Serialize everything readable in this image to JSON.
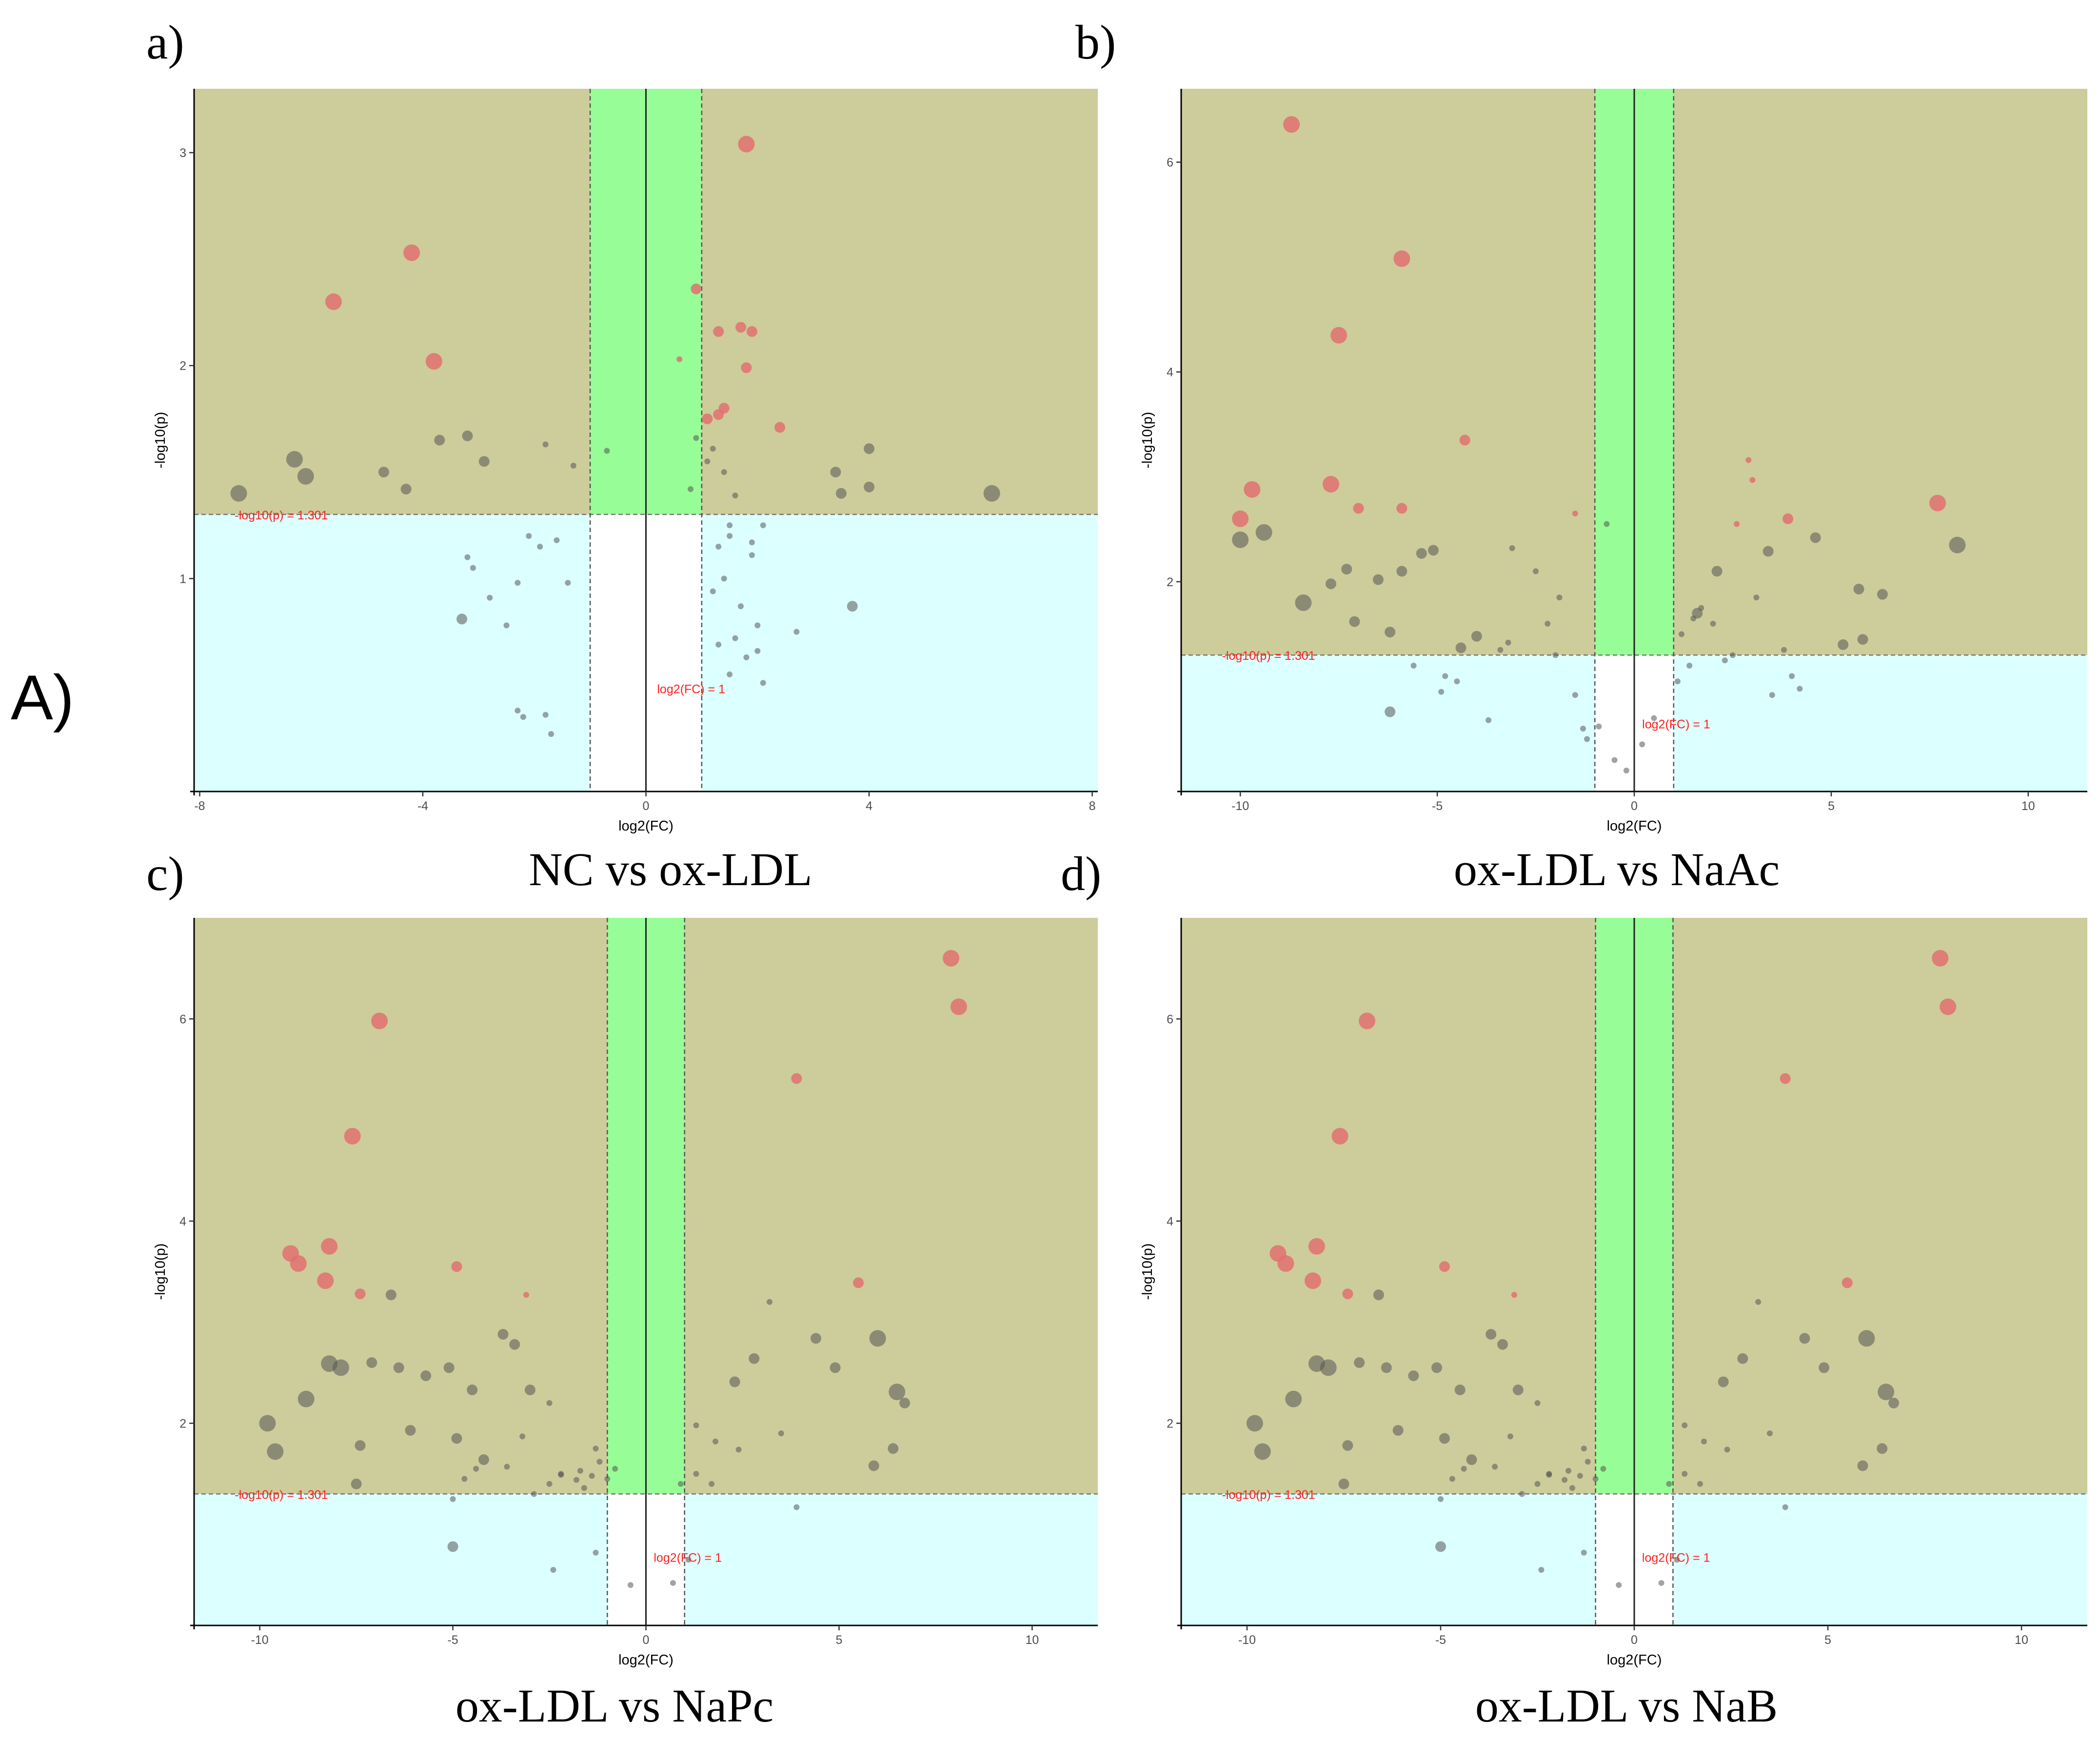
{
  "figure_label": "A)",
  "colors": {
    "significant_region": "#cdcc9b",
    "nonsignificant_region": "#dcffff",
    "foldchange_band": "#97fd96",
    "significant_point": "#e07070",
    "other_point": "#555555",
    "threshold_label": "#ff2020"
  },
  "chart_data": [
    {
      "type": "scatter",
      "panel_letter": "a)",
      "caption": "NC vs ox-LDL",
      "xlabel": "log2(FC)",
      "ylabel": "-log10(p)",
      "xlim": [
        -8.1,
        8.1
      ],
      "ylim": [
        0,
        3.3
      ],
      "xticks": [
        -8,
        -4,
        0,
        4,
        8
      ],
      "yticks": [
        1,
        2,
        3
      ],
      "p_threshold": 1.301,
      "fc_threshold": 1,
      "p_threshold_label": "-log10(p) = 1.301",
      "fc_threshold_label": "log2(FC) = 1",
      "significant": {
        "x": [
          1.8,
          -4.2,
          -5.6,
          -3.8,
          0.9,
          1.3,
          1.7,
          1.9,
          0.6,
          1.8,
          1.4,
          1.1,
          1.3,
          2.4
        ],
        "y": [
          3.04,
          2.53,
          2.3,
          2.02,
          2.36,
          2.16,
          2.18,
          2.16,
          2.03,
          1.99,
          1.8,
          1.75,
          1.77,
          1.71
        ],
        "size": [
          3,
          3,
          3,
          3,
          2,
          2,
          2,
          2,
          1,
          2,
          2,
          2,
          2,
          2
        ]
      },
      "other": {
        "x": [
          -7.3,
          -6.3,
          -6.1,
          -4.7,
          -4.3,
          -3.7,
          -3.2,
          -2.9,
          -1.8,
          -1.3,
          0.9,
          1.1,
          3.4,
          3.5,
          4,
          4,
          6.2,
          -0.7,
          1.2,
          0.8,
          1.4,
          1.6,
          -3.2,
          -3.1,
          -2.8,
          -2.3,
          -2.1,
          -1.9,
          -1.6,
          -1.4,
          -3.3,
          -2.5,
          -2.3,
          -1.8,
          -1.7,
          -2.2,
          3.7,
          2.7,
          2,
          1.5,
          1.3,
          1.5,
          1.9,
          2.1,
          1.7,
          1.3,
          1.5,
          2,
          1.6,
          2.1,
          1.2,
          1.8,
          1.4,
          1.9
        ],
        "y": [
          1.4,
          1.56,
          1.48,
          1.5,
          1.42,
          1.65,
          1.67,
          1.55,
          1.63,
          1.53,
          1.66,
          1.55,
          1.5,
          1.4,
          1.61,
          1.43,
          1.4,
          1.6,
          1.61,
          1.42,
          1.5,
          1.39,
          1.1,
          1.05,
          0.91,
          0.98,
          1.2,
          1.15,
          1.18,
          0.98,
          0.81,
          0.78,
          0.38,
          0.36,
          0.27,
          0.35,
          0.87,
          0.75,
          0.66,
          1.2,
          1.15,
          1.25,
          1.17,
          1.25,
          0.87,
          0.69,
          0.55,
          0.78,
          0.72,
          0.51,
          0.94,
          0.63,
          1,
          1.11
        ],
        "size": [
          3,
          3,
          3,
          2,
          2,
          2,
          2,
          2,
          1,
          1,
          1,
          1,
          2,
          2,
          2,
          2,
          3,
          1,
          1,
          1,
          1,
          1,
          1,
          1,
          1,
          1,
          1,
          1,
          1,
          1,
          2,
          1,
          1,
          1,
          1,
          1,
          2,
          1,
          1,
          1,
          1,
          1,
          1,
          1,
          1,
          1,
          1,
          1,
          1,
          1,
          1,
          1,
          1,
          1
        ]
      }
    },
    {
      "type": "scatter",
      "panel_letter": "b)",
      "caption": "ox-LDL vs NaAc",
      "xlabel": "log2(FC)",
      "ylabel": "-log10(p)",
      "xlim": [
        -11.5,
        11.5
      ],
      "ylim": [
        0,
        6.7
      ],
      "xticks": [
        -10,
        -5,
        0,
        5,
        10
      ],
      "yticks": [
        2,
        4,
        6
      ],
      "p_threshold": 1.301,
      "fc_threshold": 1,
      "p_threshold_label": "-log10(p) = 1.301",
      "fc_threshold_label": "log2(FC) = 1",
      "significant": {
        "x": [
          -8.7,
          -5.9,
          -7.5,
          -4.3,
          -9.7,
          -7.7,
          -7,
          -5.9,
          -10,
          -1.5,
          2.9,
          3,
          2.6,
          3.9,
          7.7
        ],
        "y": [
          6.36,
          5.08,
          4.35,
          3.35,
          2.88,
          2.93,
          2.7,
          2.7,
          2.6,
          2.65,
          3.16,
          2.97,
          2.55,
          2.6,
          2.75
        ],
        "size": [
          3,
          3,
          3,
          2,
          3,
          3,
          2,
          2,
          3,
          1,
          1,
          1,
          1,
          2,
          3
        ]
      },
      "other": {
        "x": [
          -10,
          -9.4,
          -8.4,
          -7.7,
          -7.3,
          -7.1,
          -6.5,
          -5.9,
          -6.2,
          -5.4,
          -5.1,
          -4.4,
          -4,
          -3.1,
          -2.5,
          -1.9,
          -0.7,
          1.6,
          2.1,
          3.4,
          4.6,
          5.7,
          6.3,
          8.2,
          -6.2,
          -4.8,
          -3.7,
          -3.4,
          -3.2,
          -2.2,
          -2,
          -1.5,
          -1.3,
          -1.2,
          1.2,
          1.5,
          1.7,
          2,
          2.5,
          3.1,
          3.8,
          4,
          5.8,
          5.3,
          4.2,
          3.5,
          2.3,
          1.4,
          1.1,
          0.5,
          0.2,
          -0.2,
          -0.5,
          -0.9,
          -5.6,
          -4.5,
          -4.9
        ],
        "y": [
          2.4,
          2.47,
          1.8,
          1.98,
          2.12,
          1.62,
          2.02,
          2.1,
          1.52,
          2.27,
          2.3,
          1.37,
          1.48,
          2.32,
          2.1,
          1.85,
          2.55,
          1.7,
          2.1,
          2.29,
          2.42,
          1.93,
          1.88,
          2.35,
          0.76,
          1.1,
          0.68,
          1.35,
          1.42,
          1.6,
          1.3,
          0.92,
          0.6,
          0.5,
          1.5,
          1.65,
          1.75,
          1.6,
          1.3,
          1.85,
          1.35,
          1.1,
          1.45,
          1.4,
          0.98,
          0.92,
          1.25,
          1.2,
          1.05,
          0.7,
          0.45,
          0.2,
          0.3,
          0.62,
          1.2,
          1.05,
          0.95
        ],
        "size": [
          3,
          3,
          3,
          2,
          2,
          2,
          2,
          2,
          2,
          2,
          2,
          2,
          2,
          1,
          1,
          1,
          1,
          2,
          2,
          2,
          2,
          2,
          2,
          3,
          2,
          1,
          1,
          1,
          1,
          1,
          1,
          1,
          1,
          1,
          1,
          1,
          1,
          1,
          1,
          1,
          1,
          1,
          2,
          2,
          1,
          1,
          1,
          1,
          1,
          1,
          1,
          1,
          1,
          1,
          1,
          1,
          1
        ]
      }
    },
    {
      "type": "scatter",
      "panel_letter": "c)",
      "caption": "ox-LDL vs NaPc",
      "xlabel": "log2(FC)",
      "ylabel": "-log10(p)",
      "xlim": [
        -11.7,
        11.7
      ],
      "ylim": [
        0,
        7
      ],
      "xticks": [
        -10,
        -5,
        0,
        5,
        10
      ],
      "yticks": [
        2,
        4,
        6
      ],
      "p_threshold": 1.301,
      "fc_threshold": 1,
      "p_threshold_label": "-log10(p) = 1.301",
      "fc_threshold_label": "log2(FC) = 1",
      "significant": {
        "x": [
          7.9,
          8.1,
          -6.9,
          3.9,
          -7.6,
          -9.2,
          -9,
          -8.2,
          -8.3,
          -4.9,
          -7.4,
          -3.1,
          5.5
        ],
        "y": [
          6.6,
          6.12,
          5.98,
          5.41,
          4.84,
          3.68,
          3.58,
          3.75,
          3.41,
          3.55,
          3.28,
          3.27,
          3.39
        ],
        "size": [
          3,
          3,
          3,
          2,
          3,
          3,
          3,
          3,
          3,
          2,
          2,
          1,
          2
        ]
      },
      "other": {
        "x": [
          -9.8,
          -9.6,
          -8.8,
          -8.2,
          -7.9,
          -7.4,
          -7.1,
          -6.4,
          -6.1,
          -5.7,
          -5.1,
          -4.9,
          -4.5,
          -4.2,
          -3.7,
          -3.4,
          -3,
          -2.5,
          1.7,
          2.3,
          2.8,
          3.2,
          4.4,
          4.9,
          6,
          6.5,
          6.7,
          5.9,
          6.4,
          -6.6,
          -3.6,
          -3.2,
          -2.2,
          -1.7,
          -1.3,
          -1,
          1.3,
          1.8,
          2.4,
          3.5,
          -7.5,
          -5,
          -4.7,
          -4.4,
          -2.9,
          -2.5,
          -2.2,
          -1.8,
          -1.6,
          -1.4,
          -1.2,
          -0.8,
          0.9,
          1.3,
          3.9,
          -5,
          -2.4,
          -1.3,
          1.1,
          0.7,
          -0.4
        ],
        "y": [
          2,
          1.72,
          2.24,
          2.59,
          2.55,
          1.78,
          2.6,
          2.55,
          1.93,
          2.47,
          2.55,
          1.85,
          2.33,
          1.64,
          2.88,
          2.78,
          2.33,
          2.2,
          1.4,
          2.41,
          2.64,
          3.2,
          2.84,
          2.55,
          2.84,
          2.31,
          2.2,
          1.58,
          1.75,
          3.27,
          1.57,
          1.87,
          1.49,
          1.53,
          1.75,
          1.45,
          1.98,
          1.82,
          1.74,
          1.9,
          1.4,
          1.25,
          1.45,
          1.55,
          1.3,
          1.4,
          1.5,
          1.44,
          1.36,
          1.48,
          1.62,
          1.55,
          1.4,
          1.5,
          1.17,
          0.78,
          0.55,
          0.72,
          0.65,
          0.42,
          0.4
        ],
        "size": [
          3,
          3,
          3,
          3,
          3,
          2,
          2,
          2,
          2,
          2,
          2,
          2,
          2,
          2,
          2,
          2,
          2,
          1,
          1,
          2,
          2,
          1,
          2,
          2,
          3,
          3,
          2,
          2,
          2,
          2,
          1,
          1,
          1,
          1,
          1,
          1,
          1,
          1,
          1,
          1,
          2,
          1,
          1,
          1,
          1,
          1,
          1,
          1,
          1,
          1,
          1,
          1,
          1,
          1,
          1,
          2,
          1,
          1,
          1,
          1,
          1
        ]
      }
    },
    {
      "type": "scatter",
      "panel_letter": "d)",
      "caption": "ox-LDL vs NaB",
      "xlabel": "log2(FC)",
      "ylabel": "-log10(p)",
      "xlim": [
        -11.7,
        11.7
      ],
      "ylim": [
        0,
        7
      ],
      "xticks": [
        -10,
        -5,
        0,
        5,
        10
      ],
      "yticks": [
        2,
        4,
        6
      ],
      "p_threshold": 1.301,
      "fc_threshold": 1,
      "p_threshold_label": "-log10(p) = 1.301",
      "fc_threshold_label": "log2(FC) = 1",
      "significant": {
        "x": [
          7.9,
          8.1,
          -6.9,
          3.9,
          -7.6,
          -9.2,
          -9,
          -8.2,
          -8.3,
          -4.9,
          -7.4,
          -3.1,
          5.5
        ],
        "y": [
          6.6,
          6.12,
          5.98,
          5.41,
          4.84,
          3.68,
          3.58,
          3.75,
          3.41,
          3.55,
          3.28,
          3.27,
          3.39
        ],
        "size": [
          3,
          3,
          3,
          2,
          3,
          3,
          3,
          3,
          3,
          2,
          2,
          1,
          2
        ]
      },
      "other": {
        "x": [
          -9.8,
          -9.6,
          -8.8,
          -8.2,
          -7.9,
          -7.4,
          -7.1,
          -6.4,
          -6.1,
          -5.7,
          -5.1,
          -4.9,
          -4.5,
          -4.2,
          -3.7,
          -3.4,
          -3,
          -2.5,
          1.7,
          2.3,
          2.8,
          3.2,
          4.4,
          4.9,
          6,
          6.5,
          6.7,
          5.9,
          6.4,
          -6.6,
          -3.6,
          -3.2,
          -2.2,
          -1.7,
          -1.3,
          -1,
          1.3,
          1.8,
          2.4,
          3.5,
          -7.5,
          -5,
          -4.7,
          -4.4,
          -2.9,
          -2.5,
          -2.2,
          -1.8,
          -1.6,
          -1.4,
          -1.2,
          -0.8,
          0.9,
          1.3,
          3.9,
          -5,
          -2.4,
          -1.3,
          1.1,
          0.7,
          -0.4
        ],
        "y": [
          2,
          1.72,
          2.24,
          2.59,
          2.55,
          1.78,
          2.6,
          2.55,
          1.93,
          2.47,
          2.55,
          1.85,
          2.33,
          1.64,
          2.88,
          2.78,
          2.33,
          2.2,
          1.4,
          2.41,
          2.64,
          3.2,
          2.84,
          2.55,
          2.84,
          2.31,
          2.2,
          1.58,
          1.75,
          3.27,
          1.57,
          1.87,
          1.49,
          1.53,
          1.75,
          1.45,
          1.98,
          1.82,
          1.74,
          1.9,
          1.4,
          1.25,
          1.45,
          1.55,
          1.3,
          1.4,
          1.5,
          1.44,
          1.36,
          1.48,
          1.62,
          1.55,
          1.4,
          1.5,
          1.17,
          0.78,
          0.55,
          0.72,
          0.65,
          0.42,
          0.4
        ],
        "size": [
          3,
          3,
          3,
          3,
          3,
          2,
          2,
          2,
          2,
          2,
          2,
          2,
          2,
          2,
          2,
          2,
          2,
          1,
          1,
          2,
          2,
          1,
          2,
          2,
          3,
          3,
          2,
          2,
          2,
          2,
          1,
          1,
          1,
          1,
          1,
          1,
          1,
          1,
          1,
          1,
          2,
          1,
          1,
          1,
          1,
          1,
          1,
          1,
          1,
          1,
          1,
          1,
          1,
          1,
          1,
          2,
          1,
          1,
          1,
          1,
          1
        ]
      }
    }
  ]
}
